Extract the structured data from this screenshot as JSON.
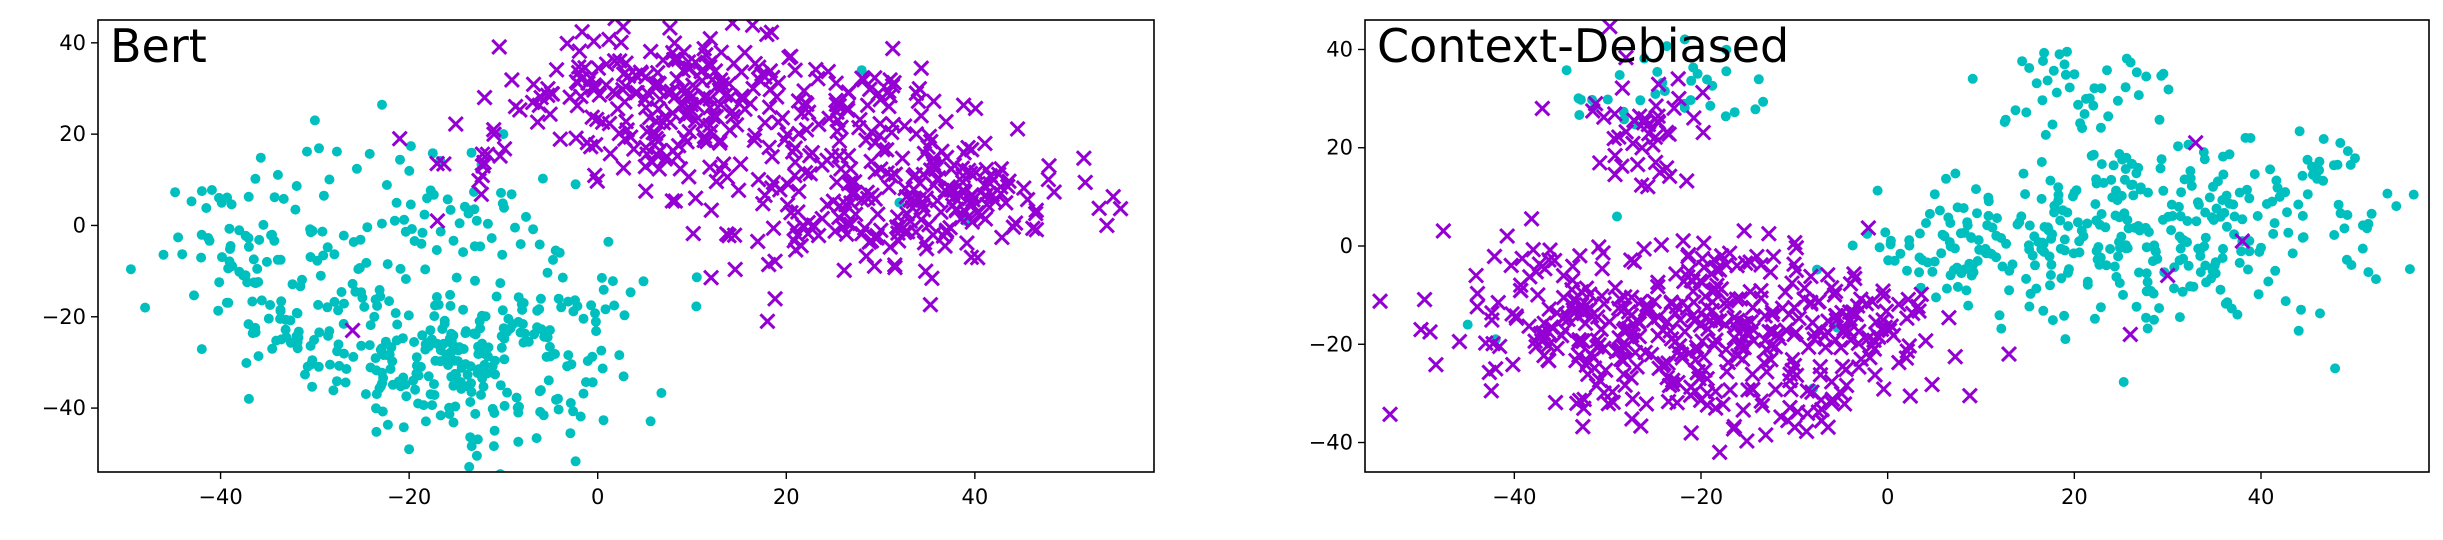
{
  "chart_data": [
    {
      "type": "scatter",
      "title": "Bert",
      "xlabel": "",
      "ylabel": "",
      "xlim": [
        -53,
        59
      ],
      "ylim": [
        -54,
        45
      ],
      "xticks": [
        -40,
        -20,
        0,
        20,
        40
      ],
      "yticks": [
        -40,
        -20,
        0,
        20,
        40
      ],
      "tick_labels_x": [
        "−40",
        "−20",
        "0",
        "20",
        "40"
      ],
      "tick_labels_y": [
        "−40",
        "−20",
        "0",
        "20",
        "40"
      ],
      "grid": false,
      "series": [
        {
          "marker": "dot",
          "color": "#00bfbf",
          "clusters": [
            {
              "cx": -14,
              "cy": -30,
              "sx": 8,
              "sy": 8,
              "n": 230
            },
            {
              "cx": -30,
              "cy": -18,
              "sx": 6,
              "sy": 8,
              "n": 90
            },
            {
              "cx": -38,
              "cy": -2,
              "sx": 4,
              "sy": 6,
              "n": 40
            },
            {
              "cx": -16,
              "cy": -2,
              "sx": 8,
              "sy": 7,
              "n": 60
            },
            {
              "cx": -24,
              "cy": 12,
              "sx": 6,
              "sy": 6,
              "n": 20
            },
            {
              "cx": -3,
              "cy": -17,
              "sx": 5,
              "sy": 5,
              "n": 20
            }
          ],
          "points": [
            [
              -48,
              -18
            ],
            [
              -30,
              23
            ],
            [
              -20,
              -49
            ],
            [
              28,
              34
            ],
            [
              32,
              5
            ],
            [
              39,
              1
            ],
            [
              -37,
              -38
            ],
            [
              -10,
              20
            ]
          ]
        },
        {
          "marker": "x",
          "color": "#9400d3",
          "clusters": [
            {
              "cx": 8,
              "cy": 27,
              "sx": 7,
              "sy": 8,
              "n": 210
            },
            {
              "cx": 36,
              "cy": 6,
              "sx": 7,
              "sy": 7,
              "n": 170
            },
            {
              "cx": 27,
              "cy": 24,
              "sx": 6,
              "sy": 7,
              "n": 80
            },
            {
              "cx": 20,
              "cy": 3,
              "sx": 6,
              "sy": 8,
              "n": 60
            },
            {
              "cx": -11,
              "cy": 13,
              "sx": 3,
              "sy": 5,
              "n": 12
            }
          ],
          "points": [
            [
              -21,
              19
            ],
            [
              -26,
              -23
            ],
            [
              -17,
              1
            ],
            [
              18,
              -21
            ],
            [
              54,
              0
            ],
            [
              -12,
              28
            ],
            [
              -11,
              20
            ],
            [
              -6,
              28
            ]
          ]
        }
      ]
    },
    {
      "type": "scatter",
      "title": "Context-Debiased",
      "xlabel": "",
      "ylabel": "",
      "xlim": [
        -56,
        58
      ],
      "ylim": [
        -46,
        46
      ],
      "xticks": [
        -40,
        -20,
        0,
        20,
        40
      ],
      "yticks": [
        -40,
        -20,
        0,
        20,
        40
      ],
      "tick_labels_x": [
        "−40",
        "−20",
        "0",
        "20",
        "40"
      ],
      "tick_labels_y": [
        "−40",
        "−20",
        "0",
        "20",
        "40"
      ],
      "grid": false,
      "series": [
        {
          "marker": "dot",
          "color": "#00bfbf",
          "clusters": [
            {
              "cx": 27,
              "cy": 3,
              "sx": 11,
              "sy": 9,
              "n": 300
            },
            {
              "cx": 8,
              "cy": 0,
              "sx": 5,
              "sy": 5,
              "n": 60
            },
            {
              "cx": 20,
              "cy": 32,
              "sx": 5,
              "sy": 5,
              "n": 40
            },
            {
              "cx": -22,
              "cy": 30,
              "sx": 7,
              "sy": 5,
              "n": 35
            },
            {
              "cx": 46,
              "cy": 15,
              "sx": 3,
              "sy": 5,
              "n": 25
            }
          ],
          "points": [
            [
              -45,
              -16
            ],
            [
              -8,
              -29
            ],
            [
              -29,
              6
            ],
            [
              9,
              -6
            ],
            [
              38,
              1
            ],
            [
              -42,
              -19
            ]
          ]
        },
        {
          "marker": "x",
          "color": "#9400d3",
          "clusters": [
            {
              "cx": -22,
              "cy": -18,
              "sx": 11,
              "sy": 9,
              "n": 330
            },
            {
              "cx": -36,
              "cy": -12,
              "sx": 5,
              "sy": 8,
              "n": 60
            },
            {
              "cx": -3,
              "cy": -16,
              "sx": 5,
              "sy": 6,
              "n": 60
            },
            {
              "cx": -26,
              "cy": 25,
              "sx": 3,
              "sy": 8,
              "n": 45
            },
            {
              "cx": -10,
              "cy": -34,
              "sx": 3,
              "sy": 2,
              "n": 12
            }
          ],
          "points": [
            [
              -50,
              -17
            ],
            [
              -37,
              28
            ],
            [
              -42,
              -25
            ],
            [
              26,
              -18
            ],
            [
              30,
              -6
            ],
            [
              38,
              1
            ],
            [
              -18,
              -42
            ],
            [
              33,
              21
            ],
            [
              13,
              -22
            ]
          ]
        }
      ]
    }
  ]
}
